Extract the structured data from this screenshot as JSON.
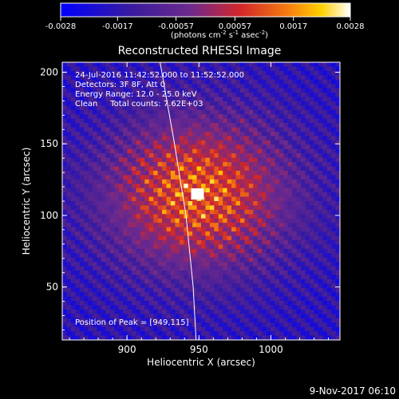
{
  "colorbar": {
    "tick_labels": [
      "-0.0028",
      "-0.0017",
      "-0.00057",
      "0.00057",
      "0.0017",
      "0.0028"
    ],
    "tick_values": [
      -0.0028,
      -0.0017,
      -0.00057,
      0.00057,
      0.0017,
      0.0028
    ],
    "range": [
      -0.0028,
      0.0028
    ],
    "unit_prefix": "(photons cm",
    "unit_sup1": "-2",
    "unit_mid1": " s",
    "unit_sup2": "-1",
    "unit_mid2": " asec",
    "unit_sup3": "-2",
    "unit_suffix": ")"
  },
  "annotations": {
    "time_range": "24-Jul-2016 11:42:52.000 to 11:52:52.000",
    "detectors": "Detectors: 3F 8F, Att 0",
    "energy": "Energy Range: 12.0 - 25.0 keV",
    "method": "Clean     Total counts: 7.62E+03",
    "peak": "Position of Peak = [949,115]"
  },
  "footer": {
    "timestamp": "9-Nov-2017 06:10"
  },
  "colors": {
    "background": "#000000",
    "text": "#ffffff",
    "limb_line": "#ffffff"
  },
  "chart_data": {
    "type": "heatmap",
    "title": "Reconstructed RHESSI Image",
    "xlabel": "Heliocentric X (arcsec)",
    "ylabel": "Heliocentric Y (arcsec)",
    "xlim": [
      855,
      1048
    ],
    "ylim": [
      13,
      207
    ],
    "x_ticks": [
      900,
      950,
      1000
    ],
    "y_ticks": [
      50,
      100,
      150,
      200
    ],
    "x_tick_labels": [
      "900",
      "950",
      "1000"
    ],
    "y_tick_labels": [
      "50",
      "100",
      "150",
      "200"
    ],
    "peak": [
      949,
      115
    ],
    "peak_value": 0.0028,
    "min_value": -0.0028,
    "colormap": "blue-purple-red-yellow-white",
    "limb_curve": [
      [
        923,
        207
      ],
      [
        933,
        150
      ],
      [
        941,
        100
      ],
      [
        946,
        50
      ],
      [
        948,
        13
      ]
    ],
    "grid": false,
    "legend": "colorbar-top"
  }
}
